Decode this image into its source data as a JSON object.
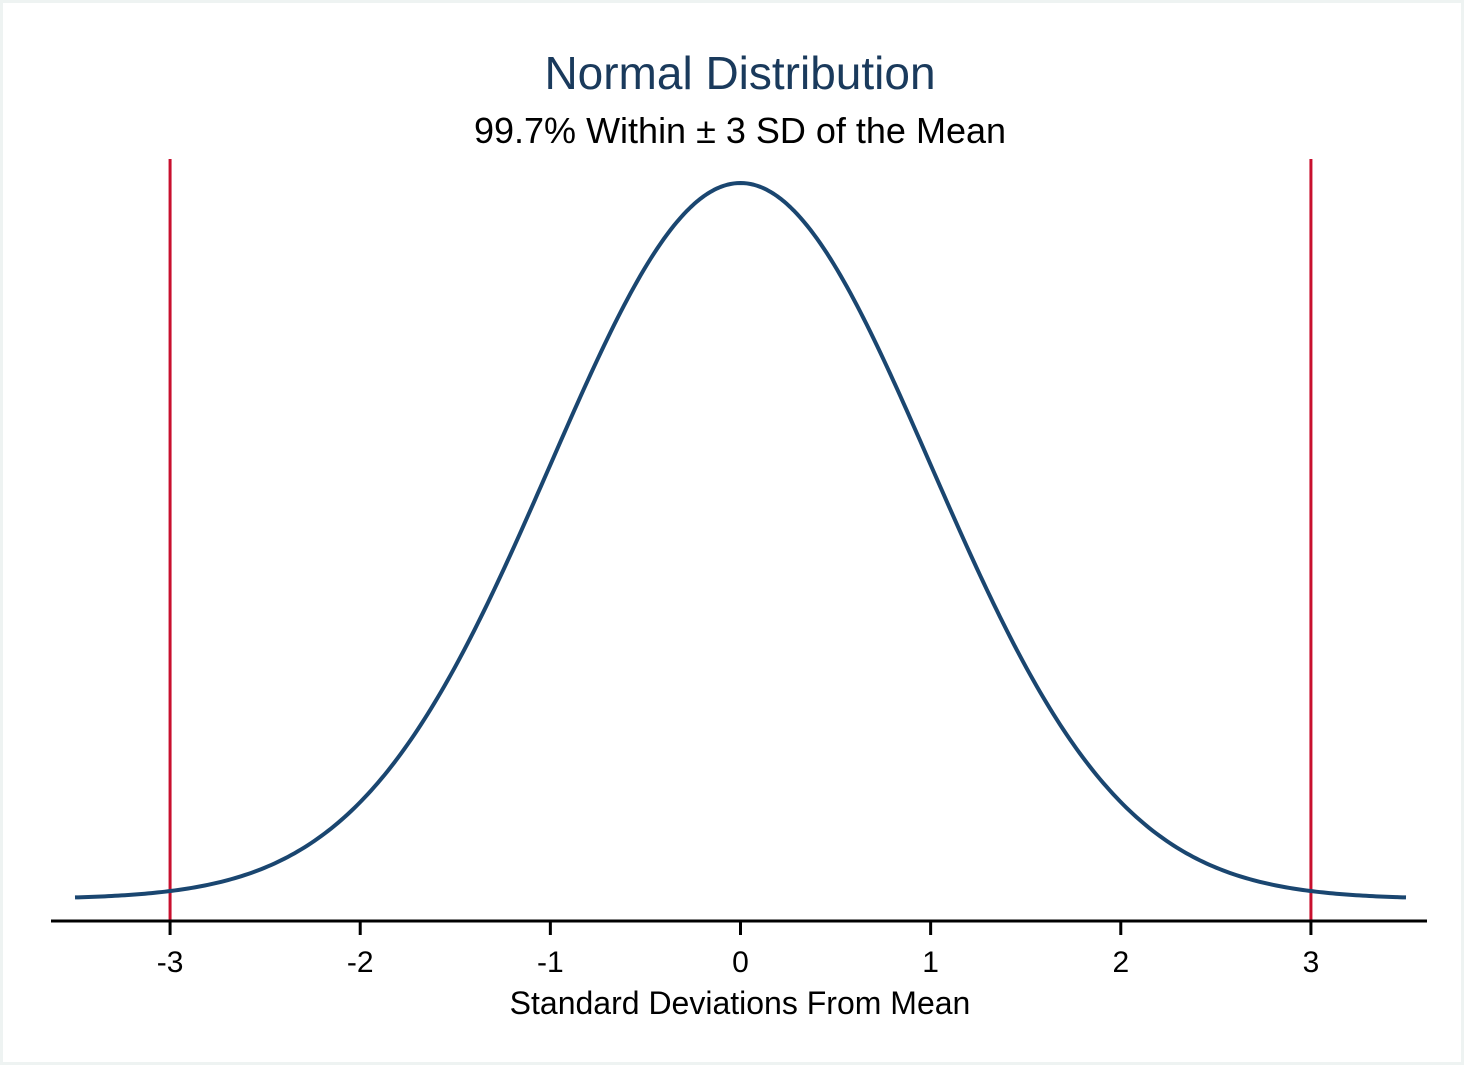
{
  "chart_data": {
    "type": "line",
    "title": "Normal Distribution",
    "subtitle": "99.7% Within ± 3 SD of the Mean",
    "xlabel": "Standard Deviations From Mean",
    "ylabel": "",
    "xlim": [
      -3.5,
      3.5
    ],
    "ylim": [
      0,
      0.4
    ],
    "x_ticks": [
      -3,
      -2,
      -1,
      0,
      1,
      2,
      3
    ],
    "x_tick_labels": [
      "-3",
      "-2",
      "-1",
      "0",
      "1",
      "2",
      "3"
    ],
    "series": [
      {
        "function": "standard normal pdf",
        "mean": 0,
        "sd": 1,
        "color": "#1a4670"
      }
    ],
    "reference_lines": [
      {
        "x": -3,
        "color": "#c8102e"
      },
      {
        "x": 3,
        "color": "#c8102e"
      }
    ],
    "grid": false,
    "legend": false
  }
}
